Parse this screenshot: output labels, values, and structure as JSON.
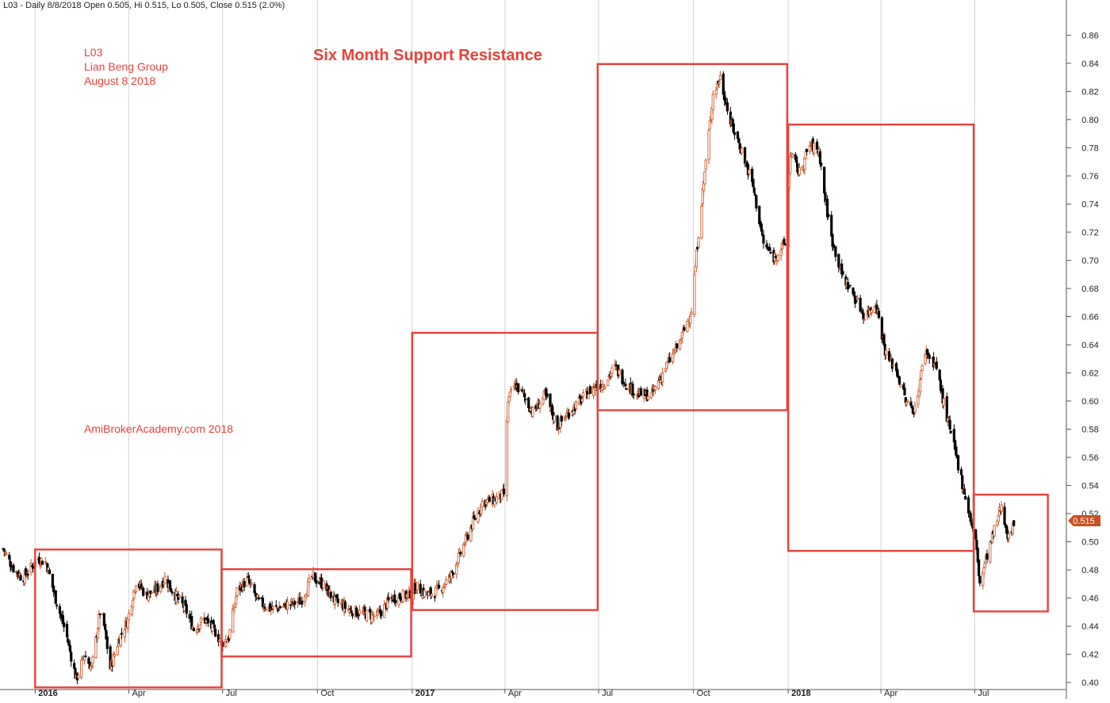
{
  "header": {
    "text": "L03 - Daily 8/8/2018 Open 0.505, Hi 0.515, Lo 0.505, Close 0.515 (2.0%)"
  },
  "annotations": {
    "ticker": "L03",
    "company": "Lian Beng Group",
    "date": "August 8 2018",
    "title": "Six Month Support Resistance",
    "site": "AmiBrokerAcademy.com  2018"
  },
  "colors": {
    "up": "#c8501e",
    "down": "#000000",
    "box": "#e8403a",
    "grid": "#d4d4d4",
    "last_price_tag": "#c8501e"
  },
  "chart_data": {
    "type": "candlestick",
    "title": "Six Month Support Resistance",
    "xlabel": "",
    "ylabel": "",
    "ylim": [
      0.395,
      0.885
    ],
    "y_ticks": [
      0.4,
      0.42,
      0.44,
      0.46,
      0.48,
      0.5,
      0.52,
      0.54,
      0.56,
      0.58,
      0.6,
      0.62,
      0.64,
      0.66,
      0.68,
      0.7,
      0.72,
      0.74,
      0.76,
      0.78,
      0.8,
      0.82,
      0.84,
      0.86
    ],
    "x_range": [
      "2015-12-01",
      "2018-09-28"
    ],
    "x_ticks": [
      {
        "date": "2016-01-01",
        "label": "2016",
        "bold": true
      },
      {
        "date": "2016-04-01",
        "label": "Apr",
        "bold": false
      },
      {
        "date": "2016-07-01",
        "label": "Jul",
        "bold": false
      },
      {
        "date": "2016-10-01",
        "label": "Oct",
        "bold": false
      },
      {
        "date": "2017-01-01",
        "label": "2017",
        "bold": true
      },
      {
        "date": "2017-04-01",
        "label": "Apr",
        "bold": false
      },
      {
        "date": "2017-07-01",
        "label": "Jul",
        "bold": false
      },
      {
        "date": "2017-10-01",
        "label": "Oct",
        "bold": false
      },
      {
        "date": "2018-01-01",
        "label": "2018",
        "bold": true
      },
      {
        "date": "2018-04-01",
        "label": "Apr",
        "bold": false
      },
      {
        "date": "2018-07-01",
        "label": "Jul",
        "bold": false
      }
    ],
    "price_path": [
      [
        "2015-12-01",
        0.495
      ],
      [
        "2015-12-10",
        0.482
      ],
      [
        "2015-12-20",
        0.474
      ],
      [
        "2016-01-04",
        0.488
      ],
      [
        "2016-01-12",
        0.485
      ],
      [
        "2016-01-20",
        0.462
      ],
      [
        "2016-02-01",
        0.432
      ],
      [
        "2016-02-10",
        0.402
      ],
      [
        "2016-02-18",
        0.42
      ],
      [
        "2016-02-25",
        0.41
      ],
      [
        "2016-03-05",
        0.455
      ],
      [
        "2016-03-14",
        0.41
      ],
      [
        "2016-03-22",
        0.43
      ],
      [
        "2016-03-31",
        0.445
      ],
      [
        "2016-04-08",
        0.472
      ],
      [
        "2016-04-18",
        0.462
      ],
      [
        "2016-04-28",
        0.466
      ],
      [
        "2016-05-06",
        0.474
      ],
      [
        "2016-05-16",
        0.462
      ],
      [
        "2016-05-26",
        0.452
      ],
      [
        "2016-06-03",
        0.438
      ],
      [
        "2016-06-13",
        0.445
      ],
      [
        "2016-06-24",
        0.436
      ],
      [
        "2016-06-30",
        0.428
      ],
      [
        "2016-07-07",
        0.432
      ],
      [
        "2016-07-15",
        0.465
      ],
      [
        "2016-07-25",
        0.473
      ],
      [
        "2016-08-05",
        0.457
      ],
      [
        "2016-08-18",
        0.452
      ],
      [
        "2016-09-01",
        0.455
      ],
      [
        "2016-09-15",
        0.458
      ],
      [
        "2016-09-26",
        0.475
      ],
      [
        "2016-10-06",
        0.47
      ],
      [
        "2016-10-18",
        0.458
      ],
      [
        "2016-10-31",
        0.452
      ],
      [
        "2016-11-14",
        0.449
      ],
      [
        "2016-11-28",
        0.447
      ],
      [
        "2016-12-12",
        0.46
      ],
      [
        "2016-12-28",
        0.462
      ],
      [
        "2017-01-05",
        0.468
      ],
      [
        "2017-01-16",
        0.462
      ],
      [
        "2017-01-27",
        0.466
      ],
      [
        "2017-02-07",
        0.475
      ],
      [
        "2017-02-17",
        0.492
      ],
      [
        "2017-02-28",
        0.512
      ],
      [
        "2017-03-10",
        0.528
      ],
      [
        "2017-03-22",
        0.53
      ],
      [
        "2017-03-31",
        0.534
      ],
      [
        "2017-04-04",
        0.6
      ],
      [
        "2017-04-11",
        0.612
      ],
      [
        "2017-04-19",
        0.604
      ],
      [
        "2017-04-28",
        0.592
      ],
      [
        "2017-05-10",
        0.604
      ],
      [
        "2017-05-22",
        0.582
      ],
      [
        "2017-06-02",
        0.592
      ],
      [
        "2017-06-13",
        0.6
      ],
      [
        "2017-06-26",
        0.61
      ],
      [
        "2017-07-05",
        0.612
      ],
      [
        "2017-07-17",
        0.624
      ],
      [
        "2017-07-28",
        0.612
      ],
      [
        "2017-08-08",
        0.605
      ],
      [
        "2017-08-21",
        0.604
      ],
      [
        "2017-09-04",
        0.624
      ],
      [
        "2017-09-18",
        0.642
      ],
      [
        "2017-09-29",
        0.665
      ],
      [
        "2017-10-06",
        0.72
      ],
      [
        "2017-10-13",
        0.77
      ],
      [
        "2017-10-20",
        0.818
      ],
      [
        "2017-10-27",
        0.83
      ],
      [
        "2017-11-06",
        0.798
      ],
      [
        "2017-11-17",
        0.778
      ],
      [
        "2017-11-28",
        0.752
      ],
      [
        "2017-12-08",
        0.712
      ],
      [
        "2017-12-18",
        0.702
      ],
      [
        "2017-12-29",
        0.712
      ],
      [
        "2018-01-03",
        0.776
      ],
      [
        "2018-01-12",
        0.762
      ],
      [
        "2018-01-22",
        0.782
      ],
      [
        "2018-01-31",
        0.778
      ],
      [
        "2018-02-05",
        0.748
      ],
      [
        "2018-02-12",
        0.716
      ],
      [
        "2018-02-22",
        0.69
      ],
      [
        "2018-03-05",
        0.676
      ],
      [
        "2018-03-16",
        0.66
      ],
      [
        "2018-03-27",
        0.67
      ],
      [
        "2018-04-06",
        0.633
      ],
      [
        "2018-04-16",
        0.622
      ],
      [
        "2018-04-26",
        0.598
      ],
      [
        "2018-05-04",
        0.594
      ],
      [
        "2018-05-14",
        0.636
      ],
      [
        "2018-05-24",
        0.626
      ],
      [
        "2018-06-04",
        0.588
      ],
      [
        "2018-06-14",
        0.558
      ],
      [
        "2018-06-25",
        0.522
      ],
      [
        "2018-07-02",
        0.5
      ],
      [
        "2018-07-06",
        0.47
      ],
      [
        "2018-07-13",
        0.49
      ],
      [
        "2018-07-20",
        0.508
      ],
      [
        "2018-07-27",
        0.526
      ],
      [
        "2018-08-03",
        0.502
      ],
      [
        "2018-08-08",
        0.515
      ]
    ],
    "boxes": [
      {
        "start": "2016-01-01",
        "end": "2016-06-30",
        "low": 0.3965,
        "high": 0.4945
      },
      {
        "start": "2016-06-30",
        "end": "2016-12-31",
        "low": 0.4185,
        "high": 0.4805
      },
      {
        "start": "2017-01-01",
        "end": "2017-06-30",
        "low": 0.4515,
        "high": 0.6485
      },
      {
        "start": "2017-06-30",
        "end": "2017-12-31",
        "low": 0.5935,
        "high": 0.8395
      },
      {
        "start": "2018-01-01",
        "end": "2018-06-30",
        "low": 0.4935,
        "high": 0.7965
      },
      {
        "start": "2018-06-30",
        "end": "2018-09-10",
        "low": 0.4505,
        "high": 0.5335
      }
    ],
    "last_price": {
      "value": 0.515,
      "label": "0.515"
    }
  }
}
